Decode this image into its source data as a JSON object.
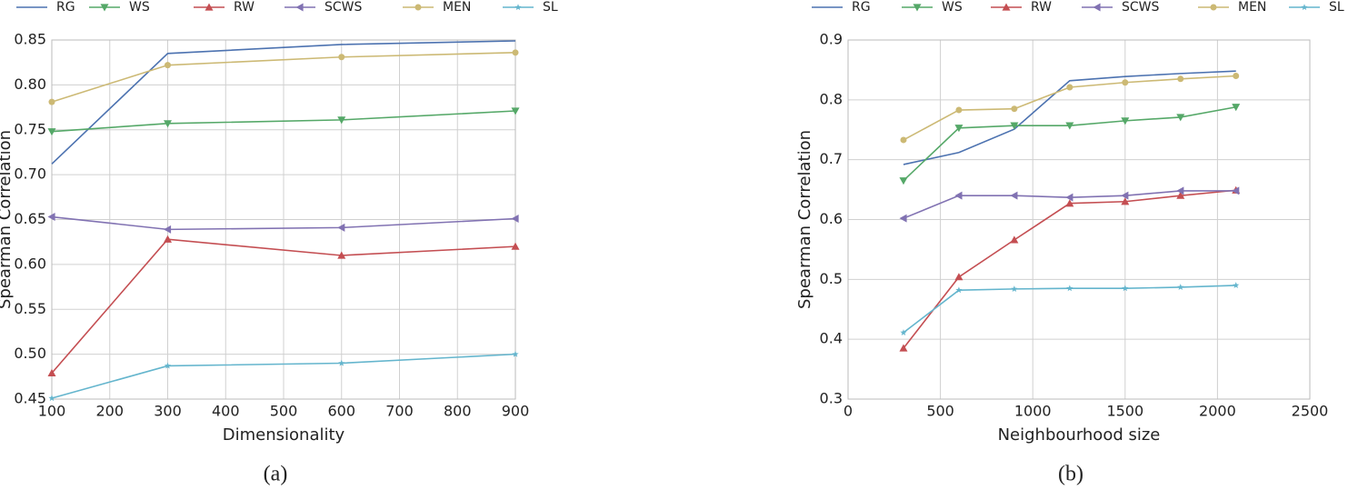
{
  "chart_data": [
    {
      "type": "line",
      "caption": "(a)",
      "x_label": "Dimensionality",
      "y_label": "Spearman Correlation",
      "x": [
        100,
        300,
        600,
        900
      ],
      "xlim": [
        100,
        900
      ],
      "xticks": [
        100,
        200,
        300,
        400,
        500,
        600,
        700,
        800,
        900
      ],
      "ylim": [
        0.45,
        0.85
      ],
      "yticks": [
        0.45,
        {
          "value": 0.5,
          "label": "0.50"
        },
        0.55,
        {
          "value": 0.6,
          "label": "0.60"
        },
        0.65,
        {
          "value": 0.7,
          "label": "0.70"
        },
        0.75,
        {
          "value": 0.8,
          "label": "0.80"
        },
        0.85
      ],
      "grid": true,
      "legend": "top",
      "series": [
        {
          "name": "RG",
          "color": "#4c72b0",
          "values": [
            0.712,
            0.835,
            0.845,
            0.849
          ]
        },
        {
          "name": "WS",
          "color": "#55a868",
          "marker": "v",
          "values": [
            0.748,
            0.757,
            0.761,
            0.771
          ]
        },
        {
          "name": "RW",
          "color": "#c44e52",
          "marker": "^",
          "values": [
            0.479,
            0.628,
            0.61,
            0.62
          ]
        },
        {
          "name": "SCWS",
          "color": "#8172b2",
          "marker": "<",
          "values": [
            0.653,
            0.639,
            0.641,
            0.651
          ]
        },
        {
          "name": "MEN",
          "color": "#ccb974",
          "marker": "o",
          "values": [
            0.781,
            0.822,
            0.831,
            0.836
          ]
        },
        {
          "name": "SL",
          "color": "#64b5cd",
          "marker": "*",
          "values": [
            0.451,
            0.487,
            0.49,
            0.5
          ]
        }
      ]
    },
    {
      "type": "line",
      "caption": "(b)",
      "x_label": "Neighbourhood size",
      "y_label": "Spearman Correlation",
      "x": [
        300,
        600,
        900,
        1200,
        1500,
        1800,
        2100
      ],
      "xlim": [
        0,
        2500
      ],
      "xticks": [
        0,
        500,
        1000,
        1500,
        2000,
        2500
      ],
      "ylim": [
        0.3,
        0.9
      ],
      "yticks": [
        0.3,
        0.4,
        0.5,
        0.6,
        0.7,
        0.8,
        0.9
      ],
      "grid": true,
      "legend": "top",
      "series": [
        {
          "name": "RG",
          "color": "#4c72b0",
          "values": [
            0.692,
            0.712,
            0.751,
            0.832,
            0.839,
            0.844,
            0.848
          ]
        },
        {
          "name": "WS",
          "color": "#55a868",
          "marker": "v",
          "values": [
            0.665,
            0.753,
            0.757,
            0.757,
            0.765,
            0.771,
            0.788
          ]
        },
        {
          "name": "RW",
          "color": "#c44e52",
          "marker": "^",
          "values": [
            0.385,
            0.504,
            0.566,
            0.627,
            0.63,
            0.64,
            0.649
          ]
        },
        {
          "name": "SCWS",
          "color": "#8172b2",
          "marker": "<",
          "values": [
            0.602,
            0.64,
            0.64,
            0.637,
            0.64,
            0.648,
            0.648
          ]
        },
        {
          "name": "MEN",
          "color": "#ccb974",
          "marker": "o",
          "values": [
            0.733,
            0.783,
            0.785,
            0.821,
            0.829,
            0.835,
            0.84
          ]
        },
        {
          "name": "SL",
          "color": "#64b5cd",
          "marker": "*",
          "values": [
            0.411,
            0.482,
            0.484,
            0.485,
            0.485,
            0.487,
            0.49
          ]
        }
      ]
    }
  ]
}
